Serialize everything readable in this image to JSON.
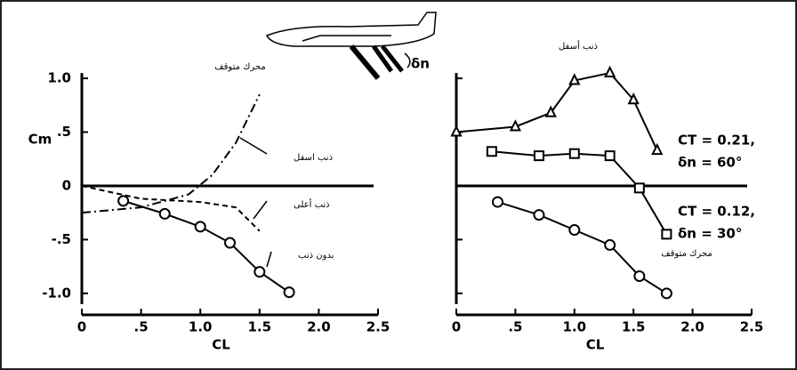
{
  "chart_data": [
    {
      "type": "line",
      "y_label": "Cm",
      "x_label": "CL",
      "xlim": [
        0,
        2.5
      ],
      "ylim": [
        -1.2,
        1.1
      ],
      "xticks": [
        0,
        {
          "value": 0.5,
          "label": ".5"
        },
        {
          "value": 1,
          "label": "1.0"
        },
        1.5,
        {
          "value": 2,
          "label": "2.0"
        },
        2.5
      ],
      "yticks": [
        {
          "value": 1,
          "label": "1.0"
        },
        {
          "value": 0.5,
          "label": ".5"
        },
        0,
        {
          "value": -0.5,
          "label": "-.5"
        },
        {
          "value": -1,
          "label": "-1.0"
        }
      ],
      "annotations": [
        "محرك متوقف"
      ],
      "series": [
        {
          "name": "ذنب اسفل",
          "color": "#000000",
          "marker": "circle",
          "dash": "solid",
          "x": [
            0.35,
            0.7,
            1.0,
            1.25,
            1.5,
            1.75
          ],
          "values": [
            -0.14,
            -0.26,
            -0.38,
            -0.53,
            -0.8,
            -0.99
          ]
        },
        {
          "name": "ذنب أعلى",
          "color": "#000000",
          "marker": "none",
          "dash": "dashed",
          "x": [
            0,
            0.5,
            1.0,
            1.3,
            1.5
          ],
          "values": [
            0,
            -0.12,
            -0.15,
            -0.2,
            -0.42
          ]
        },
        {
          "name": "بدون ذنب",
          "color": "#000000",
          "marker": "none",
          "dash": "dashdot",
          "x": [
            0,
            0.5,
            0.9,
            1.1,
            1.3,
            1.5
          ],
          "values": [
            -0.25,
            -0.2,
            -0.08,
            0.1,
            0.4,
            0.85
          ]
        }
      ]
    },
    {
      "type": "line",
      "x_label": "CL",
      "title": "ذنب أسفل",
      "xlim": [
        0,
        2.5
      ],
      "ylim": [
        -1.2,
        1.1
      ],
      "xticks": [
        0,
        {
          "value": 0.5,
          "label": ".5"
        },
        {
          "value": 1,
          "label": "1.0"
        },
        1.5,
        {
          "value": 2,
          "label": "2.0"
        },
        2.5
      ],
      "yticks": [
        -1,
        -0.5,
        0,
        0.5,
        1
      ],
      "annotations": [
        "CT = 0.21,",
        "δn = 60°",
        "CT = 0.12,",
        "δn = 30°",
        "محرك متوقف"
      ],
      "figure_label": "δn",
      "series": [
        {
          "name": "CT = 0.21, δn = 60°",
          "color": "#000000",
          "marker": "triangle",
          "dash": "solid",
          "x": [
            0,
            0.5,
            0.8,
            1.0,
            1.3,
            1.5,
            1.7
          ],
          "values": [
            0.5,
            0.55,
            0.68,
            0.98,
            1.05,
            0.8,
            0.33
          ]
        },
        {
          "name": "CT = 0.12, δn = 30°",
          "color": "#000000",
          "marker": "square",
          "dash": "solid",
          "x": [
            0.3,
            0.7,
            1.0,
            1.3,
            1.55,
            1.78
          ],
          "values": [
            0.32,
            0.28,
            0.3,
            0.28,
            -0.02,
            -0.45
          ]
        },
        {
          "name": "محرك متوقف",
          "color": "#000000",
          "marker": "circle",
          "dash": "solid",
          "x": [
            0.35,
            0.7,
            1.0,
            1.3,
            1.55,
            1.78
          ],
          "values": [
            -0.15,
            -0.27,
            -0.41,
            -0.55,
            -0.84,
            -1.0
          ]
        }
      ]
    }
  ]
}
